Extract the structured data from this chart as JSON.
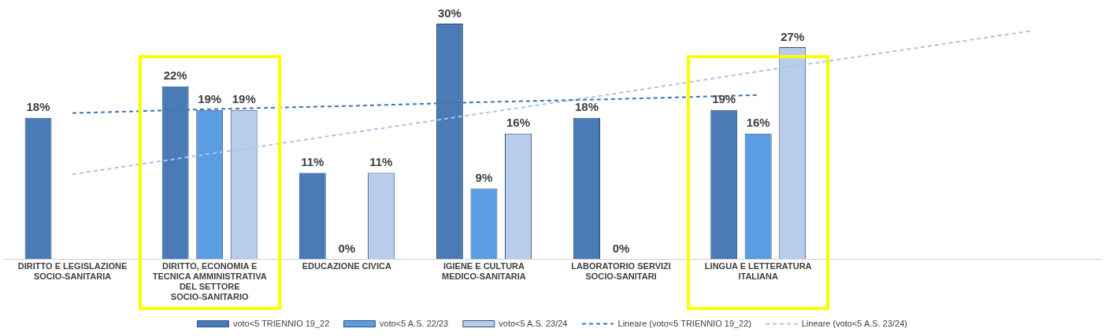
{
  "chart_data": {
    "type": "bar",
    "categories": [
      "DIRITTO E LEGISLAZIONE SOCIO-SANITARIA",
      "DIRITTO, ECONOMIA E TECNICA AMMINISTRATIVA DEL SETTORE SOCIO-SANITARIO",
      "EDUCAZIONE CIVICA",
      "IGIENE E CULTURA MEDICO-SANITARIA",
      "LABORATORIO SERVIZI SOCIO-SANITARI",
      "LINGUA E LETTERATURA ITALIANA",
      null,
      null
    ],
    "series": [
      {
        "name": "voto<5 TRIENNIO 19_22",
        "color": "#4a7bb7",
        "values": [
          18,
          22,
          11,
          30,
          18,
          19,
          null,
          null
        ],
        "value_labels": [
          "18%",
          "22%",
          "11%",
          "30%",
          "18%",
          "19%",
          null,
          null
        ]
      },
      {
        "name": "voto<5 A.S. 22/23",
        "color": "#5b9de3",
        "values": [
          null,
          19,
          0,
          9,
          0,
          16,
          null,
          null
        ],
        "value_labels": [
          null,
          "19%",
          "0%",
          "9%",
          "0%",
          "16%",
          null,
          null
        ]
      },
      {
        "name": "voto<5 A.S. 23/24",
        "color": "#b8cdeb",
        "values": [
          null,
          19,
          11,
          16,
          null,
          27,
          null,
          null
        ],
        "value_labels": [
          null,
          "19%",
          "11%",
          "16%",
          null,
          "27%",
          null,
          null
        ]
      },
      {
        "name": "Lineare (voto<5 TRIENNIO 19_22)",
        "type": "line",
        "line_style": "dashed",
        "color": "#3f74b3",
        "values": [
          18.6,
          19.1,
          19.5,
          20.0,
          20.4,
          20.9,
          null,
          null
        ]
      },
      {
        "name": "Lineare (voto<5 A.S. 23/24)",
        "type": "line",
        "line_style": "dashed",
        "color": "#a9c4e8",
        "values": [
          10.8,
          13.4,
          16.0,
          18.6,
          21.2,
          23.9,
          26.5,
          29.1
        ]
      }
    ],
    "legend": "bottom",
    "grid": false,
    "marker": "none"
  }
}
